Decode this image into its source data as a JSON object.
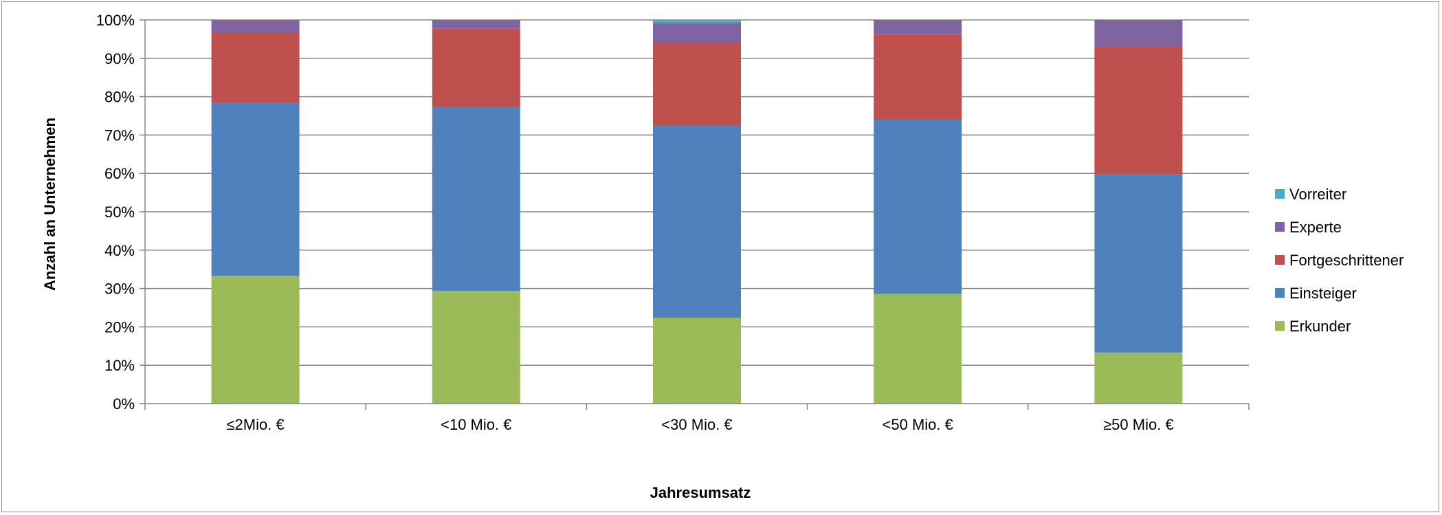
{
  "chart_data": {
    "type": "bar",
    "stacked": true,
    "percent_stacked": true,
    "title": "",
    "xlabel": "Jahresumsatz",
    "ylabel": "Anzahl an Unternehmen",
    "ylim": [
      0,
      100
    ],
    "yticks": [
      "0%",
      "10%",
      "20%",
      "30%",
      "40%",
      "50%",
      "60%",
      "70%",
      "80%",
      "90%",
      "100%"
    ],
    "grid": true,
    "legend_position": "right",
    "categories": [
      "≤2Mio. €",
      "<10 Mio. €",
      "<30 Mio. €",
      "<50 Mio. €",
      "≥50 Mio. €"
    ],
    "series": [
      {
        "name": "Erkunder",
        "color": "#9bbb59",
        "values": [
          33.3,
          29.4,
          22.4,
          28.6,
          13.3
        ]
      },
      {
        "name": "Einsteiger",
        "color": "#4f81bd",
        "values": [
          45.2,
          47.9,
          50.1,
          45.5,
          46.4
        ]
      },
      {
        "name": "Fortgeschrittener",
        "color": "#c0504d",
        "values": [
          18.3,
          20.5,
          21.5,
          22.1,
          33.4
        ]
      },
      {
        "name": "Experte",
        "color": "#8064a2",
        "values": [
          3.2,
          2.2,
          5.2,
          3.8,
          6.9
        ]
      },
      {
        "name": "Vorreiter",
        "color": "#4bacc6",
        "values": [
          0,
          0,
          0.8,
          0,
          0
        ]
      }
    ]
  }
}
